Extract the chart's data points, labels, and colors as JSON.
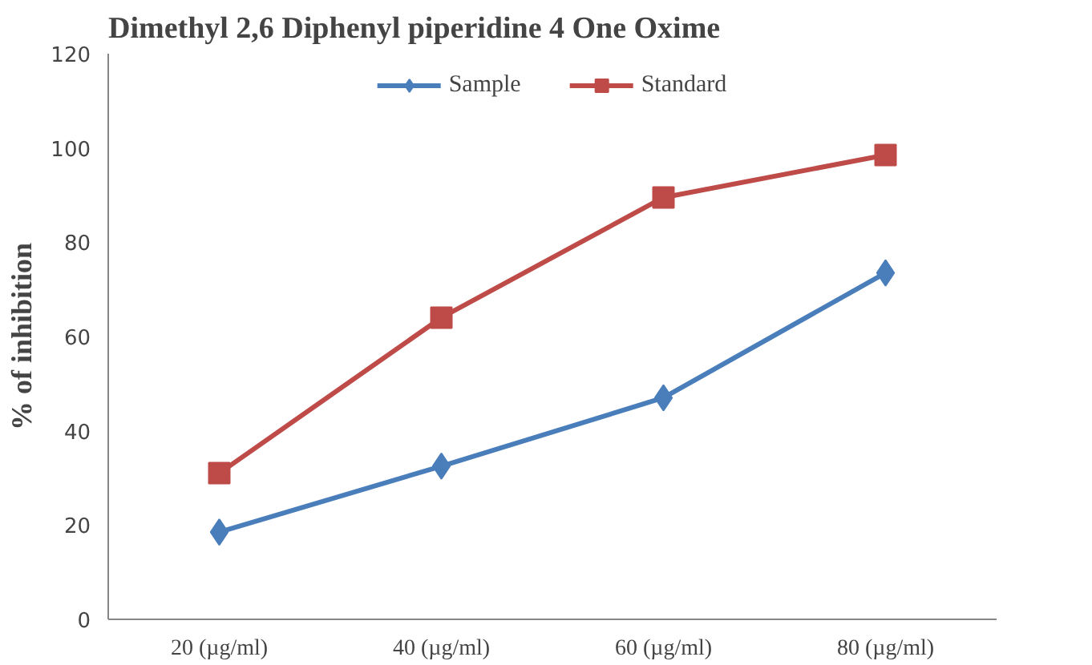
{
  "chart_data": {
    "type": "line",
    "title": "Dimethyl 2,6 Diphenyl piperidine 4 One Oxime",
    "ylabel": "% of inhibition",
    "categories": [
      "20 (µg/ml)",
      "40 (µg/ml)",
      "60 (µg/ml)",
      "80 (µg/ml)"
    ],
    "series": [
      {
        "name": "Sample",
        "color": "#4a7ebb",
        "marker": "diamond",
        "values": [
          18.5,
          32.5,
          47,
          73.5
        ]
      },
      {
        "name": "Standard",
        "color": "#be4b48",
        "marker": "square",
        "values": [
          31,
          64,
          89.5,
          98.5
        ]
      }
    ],
    "ylim": [
      0,
      120
    ],
    "yticks": [
      0,
      20,
      40,
      60,
      80,
      100,
      120
    ],
    "grid": false,
    "legend": "top",
    "line_style": "solid"
  }
}
